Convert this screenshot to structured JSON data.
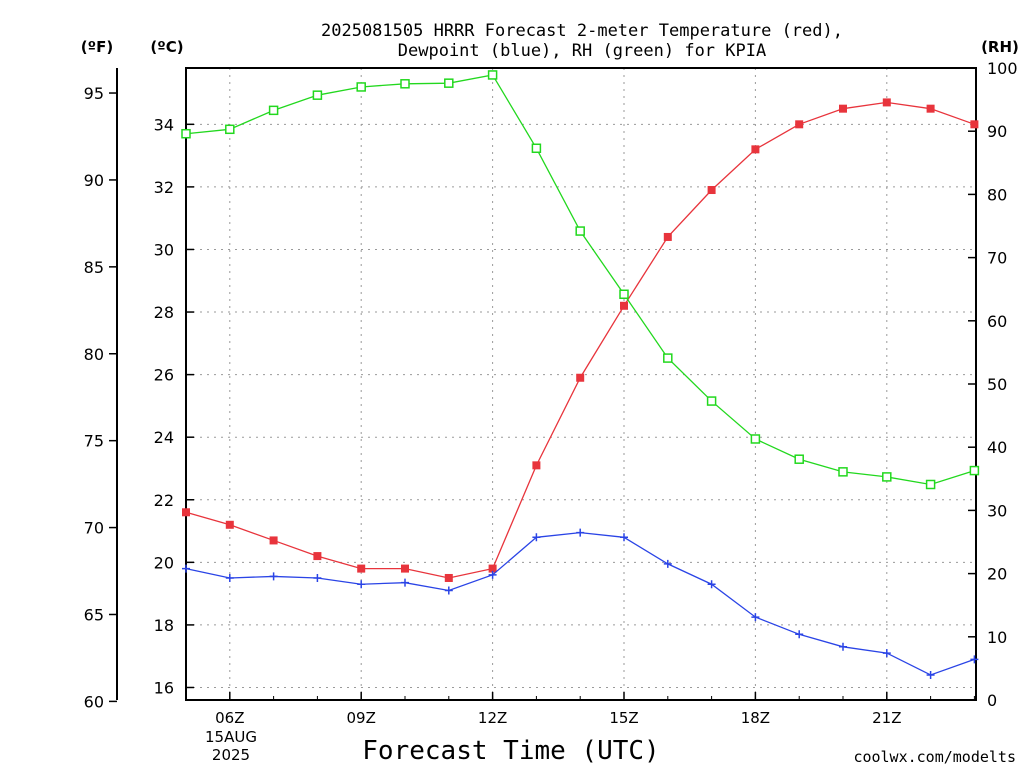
{
  "chart_data": {
    "type": "line",
    "title": [
      "2025081505 HRRR Forecast 2-meter Temperature (red),",
      "Dewpoint (blue), RH (green) for KPIA"
    ],
    "xlabel": "Forecast Time (UTC)",
    "x": [
      "05Z",
      "06Z",
      "07Z",
      "08Z",
      "09Z",
      "10Z",
      "11Z",
      "12Z",
      "13Z",
      "14Z",
      "15Z",
      "16Z",
      "17Z",
      "18Z",
      "19Z",
      "20Z",
      "21Z",
      "22Z",
      "23Z"
    ],
    "xtick_labels": [
      "06Z",
      "09Z",
      "12Z",
      "15Z",
      "18Z",
      "21Z"
    ],
    "date_label": [
      "15AUG",
      "2025"
    ],
    "y_left_f": {
      "unit": "(ºF)",
      "ticks": [
        60,
        65,
        70,
        75,
        80,
        85,
        90,
        95
      ]
    },
    "y_left_c": {
      "unit": "(ºC)",
      "ticks": [
        16,
        18,
        20,
        22,
        24,
        26,
        28,
        30,
        32,
        34
      ],
      "ylim": [
        15.6,
        35.8
      ]
    },
    "y_right_rh": {
      "unit": "(RH)",
      "ticks": [
        0,
        10,
        20,
        30,
        40,
        50,
        60,
        70,
        80,
        90,
        100
      ],
      "ylim": [
        0,
        100
      ]
    },
    "series": [
      {
        "name": "Temperature",
        "axis": "c",
        "color": "#e8343c",
        "marker": "filled-square",
        "values": [
          21.6,
          21.2,
          20.7,
          20.2,
          19.8,
          19.8,
          19.5,
          19.8,
          23.1,
          25.9,
          28.2,
          30.4,
          31.9,
          33.2,
          34.0,
          34.5,
          34.7,
          34.5,
          34.0
        ]
      },
      {
        "name": "Dewpoint",
        "axis": "c",
        "color": "#2a44e6",
        "marker": "plus",
        "values": [
          19.8,
          19.5,
          19.55,
          19.5,
          19.3,
          19.35,
          19.1,
          19.6,
          20.8,
          20.95,
          20.8,
          19.95,
          19.3,
          18.25,
          17.7,
          17.3,
          17.1,
          16.4,
          16.9
        ]
      },
      {
        "name": "RH",
        "axis": "rh",
        "color": "#22d81e",
        "marker": "open-square",
        "values": [
          89.6,
          90.3,
          93.3,
          95.7,
          97.0,
          97.5,
          97.6,
          98.9,
          87.3,
          74.2,
          64.2,
          54.1,
          47.3,
          41.3,
          38.1,
          36.1,
          35.3,
          34.1,
          36.3
        ]
      }
    ],
    "grid": true,
    "legend": "none"
  },
  "credit": "coolwx.com/modelts",
  "colors": {
    "temperature": "#e8343c",
    "dewpoint": "#2a44e6",
    "rh": "#22d81e",
    "credit": "#d2302f"
  }
}
